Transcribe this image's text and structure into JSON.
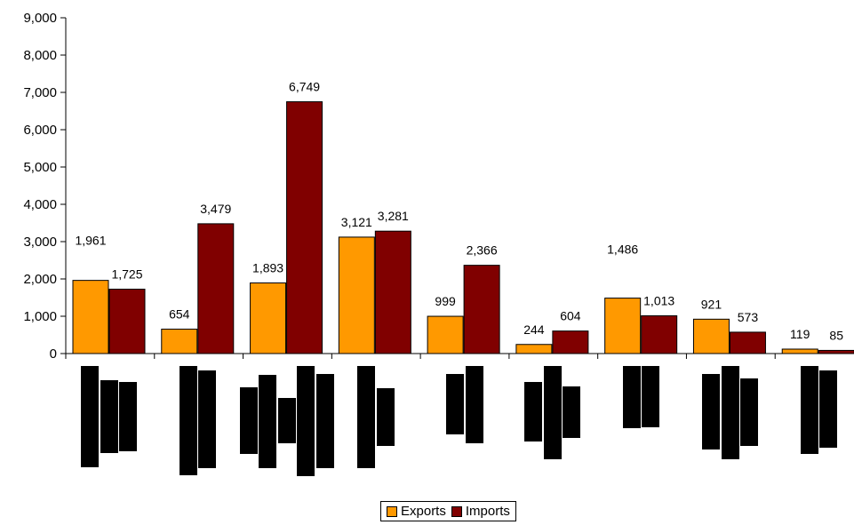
{
  "chart_data": {
    "type": "bar",
    "categories": [
      "",
      "",
      "",
      "",
      "",
      "",
      "",
      "",
      ""
    ],
    "series": [
      {
        "name": "Exports",
        "color": "#FF9900",
        "values": [
          1961,
          654,
          1893,
          3121,
          999,
          244,
          1486,
          921,
          119
        ],
        "labels": [
          "1,961",
          "654",
          "1,893",
          "3,121",
          "999",
          "244",
          "1,486",
          "921",
          "119"
        ]
      },
      {
        "name": "Imports",
        "color": "#800000",
        "values": [
          1725,
          3479,
          6749,
          3281,
          2366,
          604,
          1013,
          573,
          85
        ],
        "labels": [
          "1,725",
          "3,479",
          "6,749",
          "3,281",
          "2,366",
          "604",
          "1,013",
          "573",
          "85"
        ]
      }
    ],
    "ylim": [
      0,
      9000
    ],
    "yticks": [
      "0",
      "1,000",
      "2,000",
      "3,000",
      "4,000",
      "5,000",
      "6,000",
      "7,000",
      "8,000",
      "9,000"
    ],
    "grid": false,
    "legend": "bottom",
    "redacted_category_labels": true
  },
  "legend": {
    "exports": "Exports",
    "imports": "Imports"
  }
}
